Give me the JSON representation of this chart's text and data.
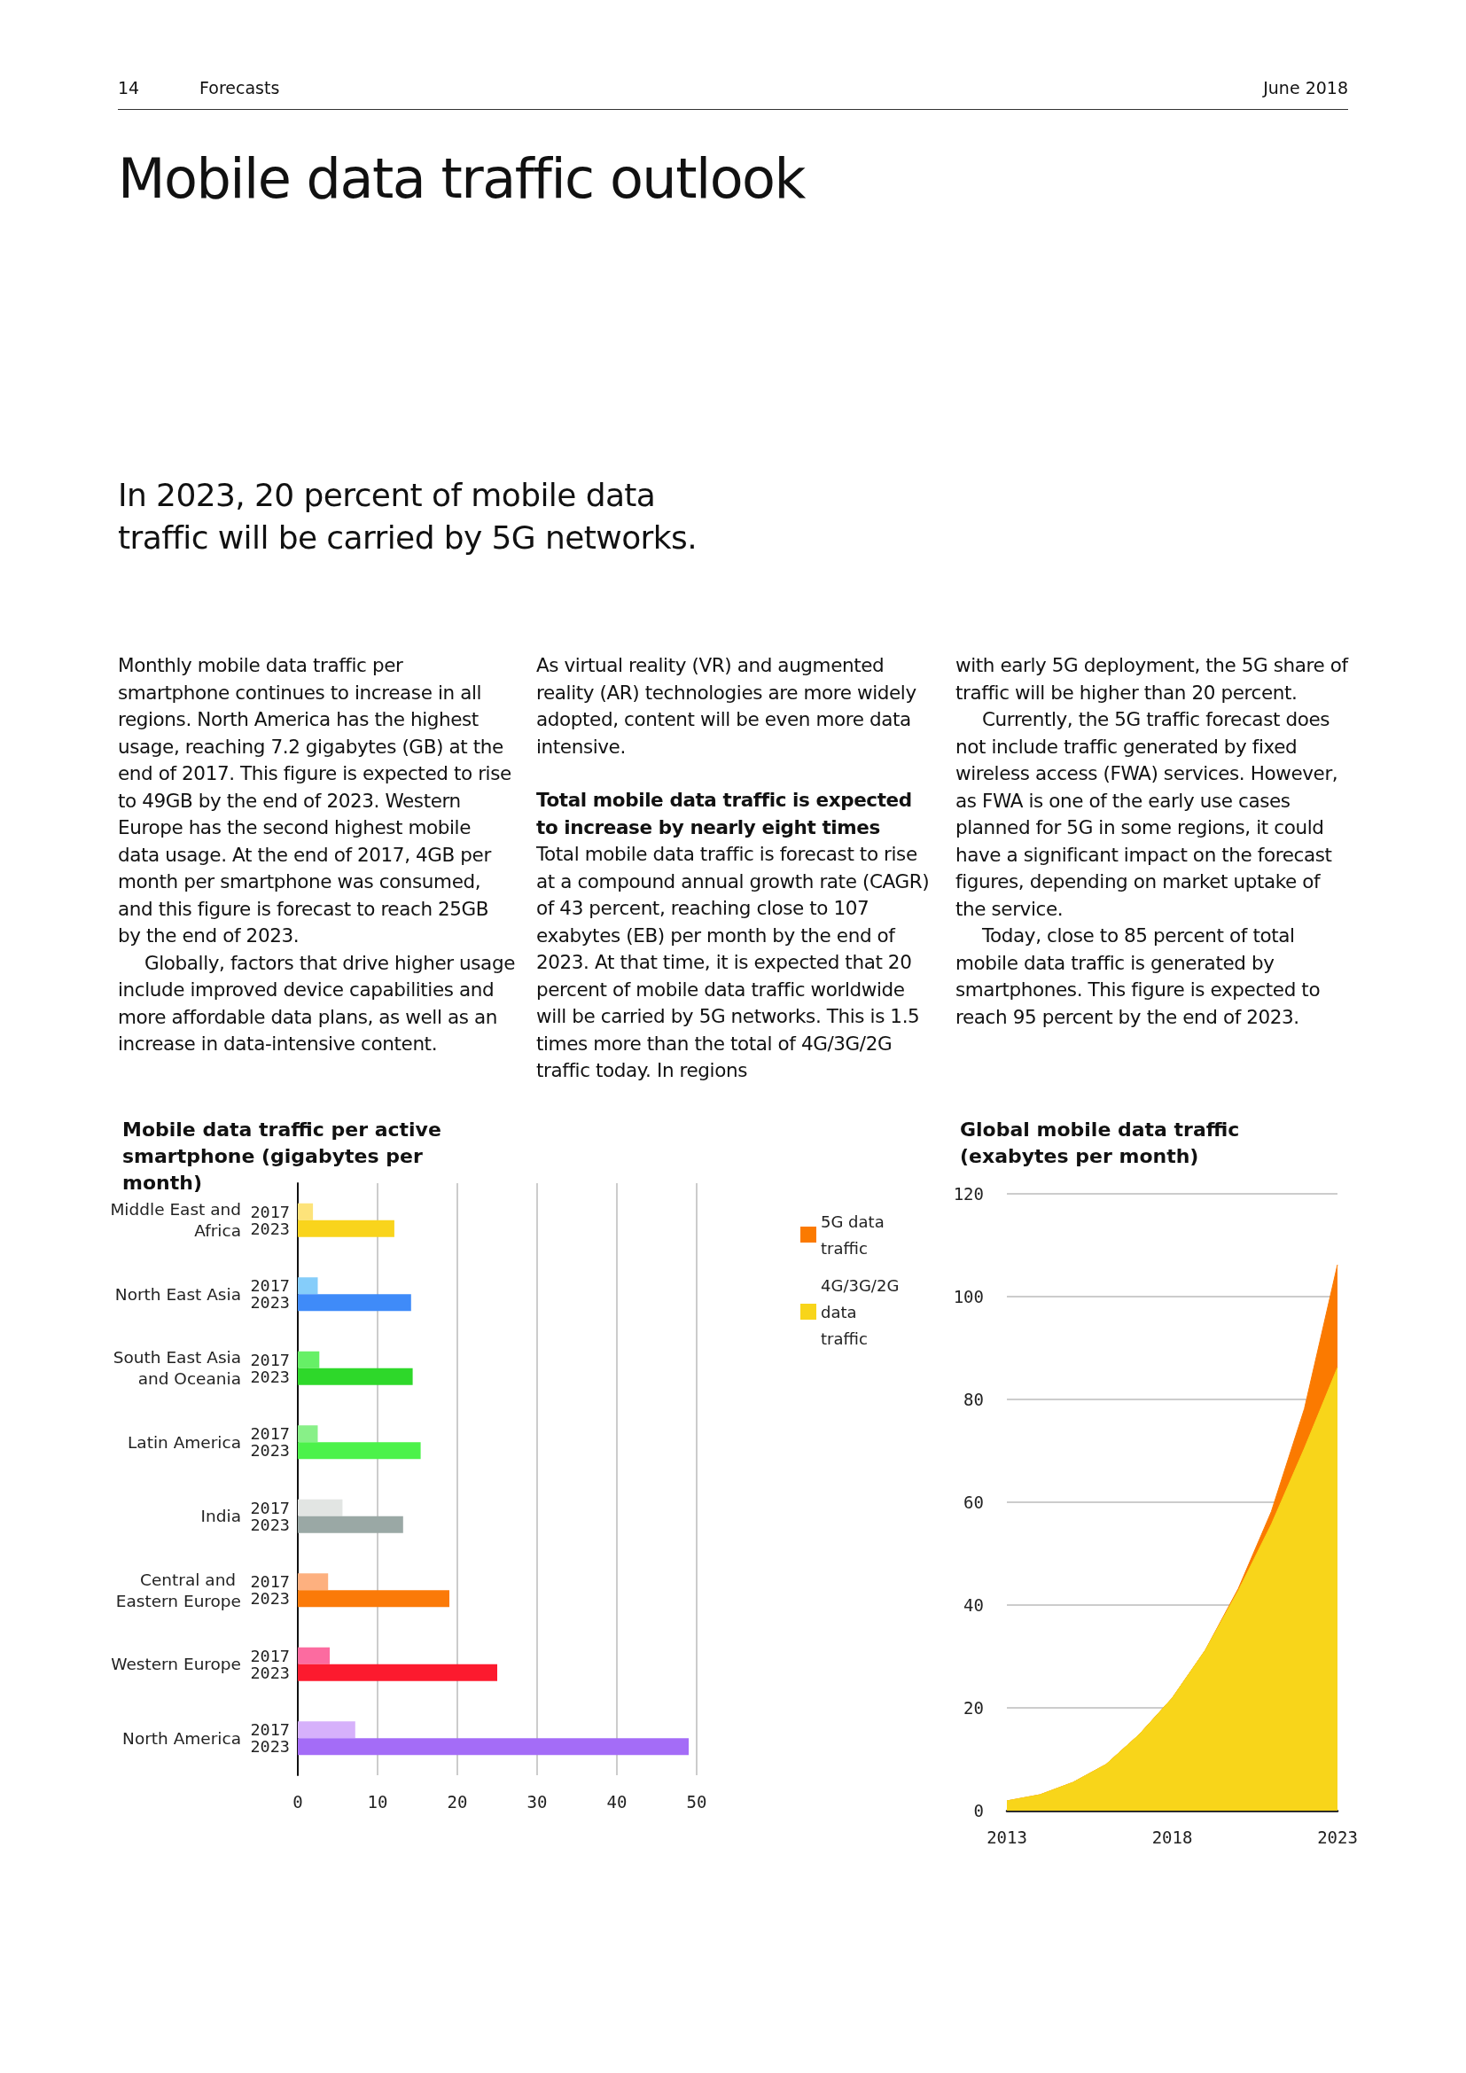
{
  "chart_data": [
    {
      "type": "bar",
      "orientation": "horizontal",
      "title": "Mobile data traffic per active smartphone (gigabytes per month)",
      "annotations": [
        "14",
        "Forecasts",
        "June 2018",
        "Mobile data traffic outlook",
        "In 2023, 20 percent of mobile data traffic will be carried by 5G networks.",
        "Monthly mobile data traffic per smartphone continues to increase in all regions. North America has the highest usage, reaching 7.2 gigabytes (GB) at the end of 2017. This figure is expected to rise to 49GB by the end of 2023. Western Europe has the second highest mobile data usage. At the end of 2017, 4GB per month per smartphone was consumed, and this figure is forecast to reach 25GB by the end of 2023.",
        "Globally, factors that drive higher usage include improved device capabilities and more affordable data plans, as well as an increase in data-intensive content.",
        "As virtual reality (VR) and augmented reality (AR) technologies are more widely adopted, content will be even more data intensive.",
        "Total mobile data traffic is expected to increase by nearly eight times",
        "Total mobile data traffic is forecast to rise at a compound annual growth rate (CAGR) of 43 percent, reaching close to 107 exabytes (EB) per month by the end of 2023. At that time, it is expected that 20 percent of mobile data traffic worldwide will be carried by 5G networks. This is 1.5 times more than the total of 4G/3G/2G traffic today. In regions",
        "with early 5G deployment, the 5G share of traffic will be higher than 20 percent.",
        "Currently, the 5G traffic forecast does not include traffic generated by fixed wireless access (FWA) services. However, as FWA is one of the early use cases planned for 5G in some regions, it could have a significant impact on the forecast figures, depending on market uptake of the service.",
        "Today, close to 85 percent of total mobile data traffic is generated by smartphones. This figure is expected to reach 95 percent by the end of 2023."
      ],
      "categories": [
        "Middle East and Africa",
        "North East Asia",
        "South East Asia and Oceania",
        "Latin America",
        "India",
        "Central and Eastern Europe",
        "Western Europe",
        "North America"
      ],
      "series": [
        {
          "name": "2017",
          "colors": [
            "#fde37a",
            "#85cdfa",
            "#66f066",
            "#88f088",
            "#e2e5e3",
            "#fdb07f",
            "#fc6ba0",
            "#d6b1fb"
          ],
          "values": [
            1.9,
            2.5,
            2.7,
            2.5,
            5.6,
            3.8,
            4,
            7.2
          ]
        },
        {
          "name": "2023",
          "colors": [
            "#f9d41c",
            "#3f8bf9",
            "#2ed82a",
            "#4cf24a",
            "#9aa8a5",
            "#fb7a08",
            "#fc1a2e",
            "#a46cf7"
          ],
          "values": [
            12.1,
            14.2,
            14.4,
            15.4,
            13.2,
            19,
            25,
            49
          ]
        }
      ],
      "xlim": [
        0,
        50
      ],
      "xticks": [
        0,
        10,
        20,
        30,
        40,
        50
      ],
      "grid": "x"
    },
    {
      "type": "area",
      "stacked": true,
      "title": "Global mobile data traffic (exabytes per month)",
      "x": [
        2013,
        2014,
        2015,
        2016,
        2017,
        2018,
        2019,
        2020,
        2021,
        2022,
        2023
      ],
      "series": [
        {
          "name": "4G/3G/2G data traffic",
          "color": "#f8d51a",
          "values": [
            1.9,
            3.1,
            5.5,
            9.0,
            14.8,
            21.9,
            31.2,
            42.8,
            55.7,
            70.5,
            86.2
          ]
        },
        {
          "name": "5G data traffic",
          "color": "#fb7a00",
          "values": [
            0,
            0,
            0,
            0,
            0,
            0,
            0,
            0.4,
            2.5,
            7.7,
            20
          ]
        }
      ],
      "xlim": [
        2013,
        2023
      ],
      "xticks": [
        2013,
        2018,
        2023
      ],
      "ylim": [
        0,
        120
      ],
      "yticks": [
        0,
        20,
        40,
        60,
        80,
        100,
        120
      ],
      "grid": "y",
      "legend": "top left"
    }
  ]
}
